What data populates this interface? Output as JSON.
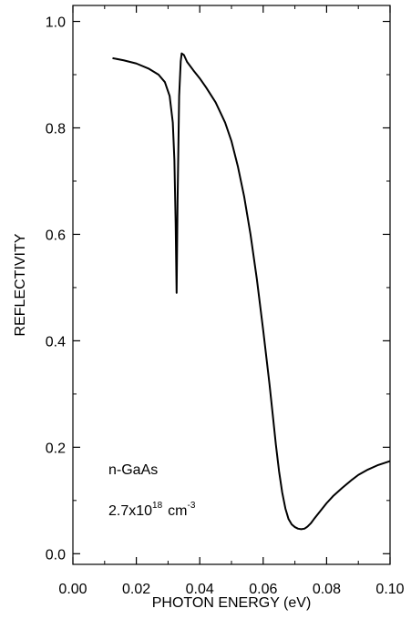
{
  "chart_data": {
    "type": "line",
    "title": "",
    "xlabel": "PHOTON ENERGY (eV)",
    "ylabel": "REFLECTIVITY",
    "xlim": [
      0.0,
      0.1
    ],
    "ylim": [
      -0.02,
      1.03
    ],
    "grid": false,
    "legend": "none",
    "x_ticks": [
      0.0,
      0.02,
      0.04,
      0.06,
      0.08,
      0.1
    ],
    "x_tick_labels": [
      "0.00",
      "0.02",
      "0.04",
      "0.06",
      "0.08",
      "0.10"
    ],
    "y_ticks": [
      0.0,
      0.2,
      0.4,
      0.6,
      0.8,
      1.0
    ],
    "y_tick_labels": [
      "0.0",
      "0.2",
      "0.4",
      "0.6",
      "0.8",
      "1.0"
    ],
    "annotations": {
      "material": "n-GaAs",
      "concentration_base": "2.7x10",
      "concentration_exp": "18",
      "concentration_unit": "cm",
      "concentration_unit_exp": "-3"
    },
    "series": [
      {
        "color": "#000000",
        "x": [
          0.0125,
          0.016,
          0.02,
          0.024,
          0.027,
          0.029,
          0.0305,
          0.0315,
          0.032,
          0.0324,
          0.0327,
          0.033,
          0.0335,
          0.034,
          0.0343,
          0.035,
          0.036,
          0.038,
          0.04,
          0.042,
          0.045,
          0.048,
          0.05,
          0.052,
          0.054,
          0.056,
          0.058,
          0.06,
          0.062,
          0.063,
          0.064,
          0.065,
          0.066,
          0.067,
          0.068,
          0.069,
          0.07,
          0.071,
          0.072,
          0.073,
          0.0735,
          0.074,
          0.075,
          0.076,
          0.078,
          0.08,
          0.082,
          0.085,
          0.088,
          0.09,
          0.093,
          0.096,
          0.1
        ],
        "y": [
          0.931,
          0.927,
          0.921,
          0.911,
          0.9,
          0.886,
          0.86,
          0.81,
          0.74,
          0.62,
          0.49,
          0.66,
          0.86,
          0.925,
          0.94,
          0.937,
          0.924,
          0.908,
          0.893,
          0.876,
          0.848,
          0.81,
          0.775,
          0.728,
          0.671,
          0.6,
          0.516,
          0.42,
          0.318,
          0.262,
          0.205,
          0.155,
          0.115,
          0.085,
          0.065,
          0.055,
          0.05,
          0.047,
          0.046,
          0.047,
          0.049,
          0.051,
          0.057,
          0.065,
          0.08,
          0.095,
          0.108,
          0.124,
          0.139,
          0.148,
          0.158,
          0.166,
          0.174
        ]
      }
    ]
  }
}
